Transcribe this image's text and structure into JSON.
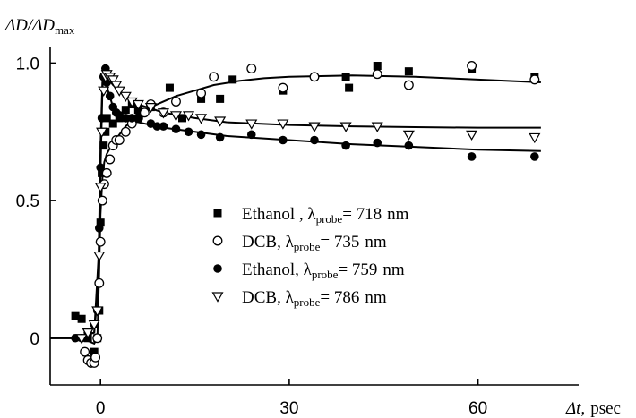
{
  "chart_data": {
    "type": "scatter",
    "ylabel": {
      "main": "ΔD/ΔD",
      "sub": "max"
    },
    "xlabel": {
      "main": "Δt,",
      "unit": "psec"
    },
    "xlim": [
      -8,
      76
    ],
    "ylim": [
      -0.17,
      1.06
    ],
    "x_ticks": [
      0,
      30,
      60
    ],
    "y_ticks": [
      {
        "value": 1.0,
        "label": "1.0"
      },
      {
        "value": 0.5,
        "label": "0.5"
      },
      {
        "value": 0,
        "label": "0"
      }
    ],
    "legend_position": "center",
    "series": [
      {
        "name": {
          "solvent": "Ethanol ,",
          "lambda_sub": "probe",
          "value": "= 718",
          "unit": "nm"
        },
        "marker": "square-filled",
        "points": [
          [
            -4,
            0.08
          ],
          [
            -3,
            0.07
          ],
          [
            -2,
            0.0
          ],
          [
            -1,
            -0.05
          ],
          [
            -0.5,
            0.0
          ],
          [
            -0.2,
            0.1
          ],
          [
            0,
            0.42
          ],
          [
            0.2,
            0.6
          ],
          [
            0.5,
            0.7
          ],
          [
            0.8,
            0.75
          ],
          [
            1,
            0.8
          ],
          [
            2,
            0.78
          ],
          [
            3,
            0.8
          ],
          [
            4,
            0.83
          ],
          [
            5,
            0.85
          ],
          [
            6,
            0.83
          ],
          [
            8,
            0.84
          ],
          [
            11,
            0.91
          ],
          [
            13,
            0.8
          ],
          [
            16,
            0.87
          ],
          [
            19,
            0.87
          ],
          [
            21,
            0.94
          ],
          [
            29,
            0.9
          ],
          [
            39,
            0.95
          ],
          [
            39.5,
            0.91
          ],
          [
            44,
            0.99
          ],
          [
            49,
            0.97
          ],
          [
            59,
            0.98
          ],
          [
            69,
            0.95
          ]
        ]
      },
      {
        "name": {
          "solvent": "DCB,",
          "lambda_sub": "probe",
          "value": "= 735",
          "unit": "nm"
        },
        "marker": "circle-open",
        "points": [
          [
            -2.5,
            -0.05
          ],
          [
            -2,
            -0.08
          ],
          [
            -1.5,
            -0.09
          ],
          [
            -1,
            -0.09
          ],
          [
            -0.8,
            -0.07
          ],
          [
            -0.5,
            0.0
          ],
          [
            -0.2,
            0.2
          ],
          [
            0,
            0.35
          ],
          [
            0.3,
            0.5
          ],
          [
            0.6,
            0.56
          ],
          [
            1,
            0.6
          ],
          [
            1.5,
            0.65
          ],
          [
            2,
            0.7
          ],
          [
            2.5,
            0.72
          ],
          [
            3,
            0.72
          ],
          [
            4,
            0.75
          ],
          [
            5,
            0.78
          ],
          [
            6,
            0.8
          ],
          [
            7,
            0.82
          ],
          [
            8,
            0.85
          ],
          [
            10,
            0.82
          ],
          [
            12,
            0.86
          ],
          [
            16,
            0.89
          ],
          [
            18,
            0.95
          ],
          [
            24,
            0.98
          ],
          [
            29,
            0.91
          ],
          [
            34,
            0.95
          ],
          [
            44,
            0.96
          ],
          [
            49,
            0.92
          ],
          [
            59,
            0.99
          ],
          [
            69,
            0.94
          ]
        ]
      },
      {
        "name": {
          "solvent": "Ethanol,",
          "lambda_sub": "probe",
          "value": "= 759",
          "unit": "nm"
        },
        "marker": "circle-filled",
        "points": [
          [
            -4,
            0.0
          ],
          [
            -3,
            0.0
          ],
          [
            -2,
            0.02
          ],
          [
            -1,
            0.05
          ],
          [
            -0.5,
            0.1
          ],
          [
            -0.2,
            0.4
          ],
          [
            0,
            0.62
          ],
          [
            0.2,
            0.8
          ],
          [
            0.5,
            0.95
          ],
          [
            0.8,
            0.98
          ],
          [
            1,
            0.93
          ],
          [
            1.5,
            0.88
          ],
          [
            2,
            0.84
          ],
          [
            2.5,
            0.82
          ],
          [
            3,
            0.81
          ],
          [
            4,
            0.8
          ],
          [
            5,
            0.8
          ],
          [
            6,
            0.8
          ],
          [
            8,
            0.78
          ],
          [
            9,
            0.77
          ],
          [
            10,
            0.77
          ],
          [
            12,
            0.76
          ],
          [
            14,
            0.75
          ],
          [
            16,
            0.74
          ],
          [
            19,
            0.73
          ],
          [
            24,
            0.74
          ],
          [
            29,
            0.72
          ],
          [
            34,
            0.72
          ],
          [
            39,
            0.7
          ],
          [
            44,
            0.71
          ],
          [
            49,
            0.7
          ],
          [
            59,
            0.66
          ],
          [
            69,
            0.66
          ]
        ]
      },
      {
        "name": {
          "solvent": "DCB,",
          "lambda_sub": "probe",
          "value": "= 786",
          "unit": "nm"
        },
        "marker": "triangle-down-open",
        "points": [
          [
            -3,
            0.0
          ],
          [
            -2,
            0.02
          ],
          [
            -1,
            0.05
          ],
          [
            -0.5,
            0.1
          ],
          [
            -0.2,
            0.3
          ],
          [
            0,
            0.55
          ],
          [
            0.2,
            0.75
          ],
          [
            0.5,
            0.9
          ],
          [
            0.8,
            0.95
          ],
          [
            1,
            0.96
          ],
          [
            1.5,
            0.95
          ],
          [
            2,
            0.94
          ],
          [
            2.5,
            0.92
          ],
          [
            3,
            0.9
          ],
          [
            4,
            0.88
          ],
          [
            5,
            0.86
          ],
          [
            6,
            0.85
          ],
          [
            8,
            0.84
          ],
          [
            10,
            0.82
          ],
          [
            12,
            0.81
          ],
          [
            14,
            0.81
          ],
          [
            16,
            0.8
          ],
          [
            19,
            0.79
          ],
          [
            24,
            0.78
          ],
          [
            29,
            0.78
          ],
          [
            34,
            0.77
          ],
          [
            39,
            0.77
          ],
          [
            44,
            0.77
          ],
          [
            49,
            0.74
          ],
          [
            59,
            0.74
          ],
          [
            69,
            0.73
          ]
        ]
      }
    ],
    "fit_curves": [
      {
        "name": "rise-fit",
        "points": [
          [
            -8,
            0.0
          ],
          [
            -4,
            0.0
          ],
          [
            -2,
            -0.01
          ],
          [
            -1,
            -0.02
          ],
          [
            -0.5,
            0.0
          ],
          [
            -0.2,
            0.25
          ],
          [
            0,
            0.45
          ],
          [
            0.3,
            0.58
          ],
          [
            0.6,
            0.64
          ],
          [
            1,
            0.67
          ],
          [
            2,
            0.71
          ],
          [
            3,
            0.74
          ],
          [
            4,
            0.77
          ],
          [
            5,
            0.79
          ],
          [
            6,
            0.81
          ],
          [
            8,
            0.84
          ],
          [
            10,
            0.86
          ],
          [
            12,
            0.88
          ],
          [
            15,
            0.9
          ],
          [
            18,
            0.92
          ],
          [
            22,
            0.935
          ],
          [
            26,
            0.945
          ],
          [
            30,
            0.95
          ],
          [
            40,
            0.955
          ],
          [
            50,
            0.95
          ],
          [
            60,
            0.94
          ],
          [
            70,
            0.93
          ]
        ]
      },
      {
        "name": "decay-fit-759",
        "points": [
          [
            -8,
            0.0
          ],
          [
            -4,
            0.0
          ],
          [
            -1,
            0.02
          ],
          [
            -0.3,
            0.2
          ],
          [
            0,
            0.6
          ],
          [
            0.3,
            0.9
          ],
          [
            0.5,
            0.98
          ],
          [
            0.8,
            0.95
          ],
          [
            1.2,
            0.9
          ],
          [
            2,
            0.84
          ],
          [
            3,
            0.81
          ],
          [
            5,
            0.79
          ],
          [
            7,
            0.78
          ],
          [
            10,
            0.765
          ],
          [
            15,
            0.75
          ],
          [
            20,
            0.735
          ],
          [
            30,
            0.72
          ],
          [
            40,
            0.705
          ],
          [
            50,
            0.695
          ],
          [
            60,
            0.685
          ],
          [
            70,
            0.68
          ]
        ]
      },
      {
        "name": "decay-fit-786",
        "points": [
          [
            -8,
            0.0
          ],
          [
            -4,
            0.0
          ],
          [
            -1,
            0.02
          ],
          [
            -0.3,
            0.3
          ],
          [
            0,
            0.7
          ],
          [
            0.3,
            0.93
          ],
          [
            0.6,
            0.97
          ],
          [
            1,
            0.95
          ],
          [
            2,
            0.92
          ],
          [
            4,
            0.88
          ],
          [
            6,
            0.85
          ],
          [
            10,
            0.82
          ],
          [
            15,
            0.8
          ],
          [
            20,
            0.785
          ],
          [
            30,
            0.775
          ],
          [
            40,
            0.77
          ],
          [
            50,
            0.767
          ],
          [
            60,
            0.765
          ],
          [
            70,
            0.765
          ]
        ]
      }
    ]
  }
}
